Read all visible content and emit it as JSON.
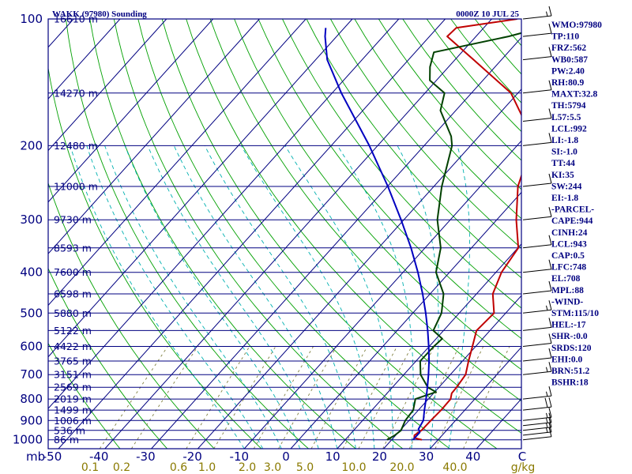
{
  "chart_data": {
    "type": "line",
    "title": "WAKK (97980) Sounding",
    "valid_time": "0000Z 10 JUL 25",
    "y_axis_unit": "mb",
    "x_axis_unit": "C",
    "mixing_ratio_unit": "g/kg",
    "pressure_ticks": [
      100,
      200,
      300,
      400,
      500,
      600,
      700,
      800,
      900,
      1000
    ],
    "temperature_ticks": [
      "-50",
      "-40",
      "-30",
      "-20",
      "-10",
      "0",
      "10",
      "20",
      "30",
      "40"
    ],
    "mixing_ratio_labels": [
      "0.1",
      "0.2",
      "0.6",
      "1.0",
      "2.0",
      "3.0",
      "5.0",
      "10.0",
      "20.0",
      "40.0"
    ],
    "height_levels": [
      {
        "p": 100,
        "label": "16610 m"
      },
      {
        "p": 150,
        "label": "14270 m"
      },
      {
        "p": 200,
        "label": "12480 m"
      },
      {
        "p": 250,
        "label": "11000 m"
      },
      {
        "p": 300,
        "label": "9730 m"
      },
      {
        "p": 350,
        "label": "8593 m"
      },
      {
        "p": 400,
        "label": "7600 m"
      },
      {
        "p": 450,
        "label": "6598 m"
      },
      {
        "p": 500,
        "label": "5880 m"
      },
      {
        "p": 550,
        "label": "5122 m"
      },
      {
        "p": 600,
        "label": "4422 m"
      },
      {
        "p": 650,
        "label": "3765 m"
      },
      {
        "p": 700,
        "label": "3151 m"
      },
      {
        "p": 750,
        "label": "2569 m"
      },
      {
        "p": 800,
        "label": "2019 m"
      },
      {
        "p": 850,
        "label": "1499 m"
      },
      {
        "p": 900,
        "label": "1006 m"
      },
      {
        "p": 950,
        "label": "536 m"
      },
      {
        "p": 1000,
        "label": "86 m"
      }
    ],
    "series": [
      {
        "name": "Temperature",
        "color": "#c00000",
        "points": [
          [
            26.5,
            1000
          ],
          [
            24.5,
            990
          ],
          [
            24.0,
            975
          ],
          [
            24.6,
            950
          ],
          [
            24.7,
            900
          ],
          [
            24.9,
            850
          ],
          [
            24.8,
            800
          ],
          [
            23.9,
            775
          ],
          [
            23.8,
            750
          ],
          [
            23.3,
            700
          ],
          [
            21.3,
            650
          ],
          [
            19.3,
            600
          ],
          [
            17.1,
            550
          ],
          [
            17.5,
            500
          ],
          [
            13.5,
            450
          ],
          [
            11.2,
            400
          ],
          [
            10.1,
            350
          ],
          [
            4.2,
            300
          ],
          [
            -1.9,
            250
          ],
          [
            -6.9,
            200
          ],
          [
            -13.1,
            175
          ],
          [
            -21.5,
            150
          ],
          [
            -36.0,
            125
          ],
          [
            -46.2,
            110
          ],
          [
            -45.9,
            105
          ],
          [
            -34.5,
            100
          ]
        ]
      },
      {
        "name": "Dewpoint",
        "color": "#004000",
        "points": [
          [
            19.0,
            1000
          ],
          [
            19.8,
            975
          ],
          [
            20.2,
            950
          ],
          [
            19.2,
            900
          ],
          [
            18.9,
            850
          ],
          [
            17.2,
            800
          ],
          [
            20.3,
            770
          ],
          [
            17.6,
            750
          ],
          [
            13.6,
            700
          ],
          [
            10.9,
            650
          ],
          [
            11.0,
            600
          ],
          [
            11.3,
            575
          ],
          [
            7.8,
            550
          ],
          [
            6.2,
            500
          ],
          [
            2.9,
            450
          ],
          [
            -2.9,
            400
          ],
          [
            -6.6,
            350
          ],
          [
            -12.8,
            300
          ],
          [
            -18.3,
            250
          ],
          [
            -24.0,
            200
          ],
          [
            -26.0,
            190
          ],
          [
            -33.3,
            165
          ],
          [
            -35.8,
            150
          ],
          [
            -41.4,
            140
          ],
          [
            -44.0,
            130
          ],
          [
            -46.0,
            120
          ],
          [
            -33.0,
            110
          ],
          [
            -22.0,
            100
          ]
        ]
      },
      {
        "name": "Parcel",
        "color": "#0000c0",
        "points": [
          [
            24.6,
            1000
          ],
          [
            24.6,
            960
          ],
          [
            23.7,
            943
          ],
          [
            23.1,
            900
          ],
          [
            21.3,
            850
          ],
          [
            19.5,
            800
          ],
          [
            17.5,
            750
          ],
          [
            15.3,
            700
          ],
          [
            12.8,
            650
          ],
          [
            9.9,
            600
          ],
          [
            6.6,
            550
          ],
          [
            2.8,
            500
          ],
          [
            -1.6,
            450
          ],
          [
            -6.8,
            400
          ],
          [
            -13.0,
            350
          ],
          [
            -20.6,
            300
          ],
          [
            -29.9,
            250
          ],
          [
            -41.8,
            200
          ],
          [
            -58.0,
            150
          ],
          [
            -67.5,
            125
          ],
          [
            -72.5,
            110
          ],
          [
            -74.0,
            105
          ]
        ]
      }
    ],
    "wind_barbs": [
      {
        "p": 1000,
        "speed_kt": 10
      },
      {
        "p": 975,
        "speed_kt": 15
      },
      {
        "p": 950,
        "speed_kt": 15
      },
      {
        "p": 925,
        "speed_kt": 15
      },
      {
        "p": 900,
        "speed_kt": 15
      },
      {
        "p": 850,
        "speed_kt": 20
      },
      {
        "p": 800,
        "speed_kt": 15
      },
      {
        "p": 700,
        "speed_kt": 15
      },
      {
        "p": 650,
        "speed_kt": 10
      },
      {
        "p": 600,
        "speed_kt": 10
      },
      {
        "p": 550,
        "speed_kt": 10
      },
      {
        "p": 500,
        "speed_kt": 15
      },
      {
        "p": 450,
        "speed_kt": 10
      },
      {
        "p": 400,
        "speed_kt": 10
      },
      {
        "p": 350,
        "speed_kt": 10
      },
      {
        "p": 300,
        "speed_kt": 10
      },
      {
        "p": 250,
        "speed_kt": 10
      },
      {
        "p": 200,
        "speed_kt": 10
      },
      {
        "p": 175,
        "speed_kt": 10
      },
      {
        "p": 150,
        "speed_kt": 10
      },
      {
        "p": 125,
        "speed_kt": 10
      },
      {
        "p": 110,
        "speed_kt": 10
      },
      {
        "p": 100,
        "speed_kt": 15
      }
    ],
    "colors": {
      "frame": "#000080",
      "isobar": "#000080",
      "isotherm": "#000080",
      "dry_adiabat": "#00a000",
      "moist_adiabat": "#00b0b0",
      "mixing_ratio": "#808040",
      "barb": "#000000"
    }
  },
  "indices": [
    "WMO:97980",
    "TP:110",
    "FRZ:562",
    "WB0:587",
    "PW:2.40",
    "RH:80.9",
    "MAXT:32.8",
    "TH:5794",
    "L57:5.5",
    "LCL:992",
    "LI:-1.8",
    "SI:-1.0",
    "TT:44",
    "KI:35",
    "SW:244",
    "EI:-1.8",
    "-PARCEL-",
    "CAPE:944",
    "CINH:24",
    "LCL:943",
    "CAP:0.5",
    "LFC:748",
    "EL:708",
    "MPL:88",
    "-WIND-",
    "STM:115/10",
    "HEL:-17",
    "SHR-:0.0",
    "SRDS:120",
    "EHI:0.0",
    "BRN:51.2",
    "BSHR:18"
  ]
}
